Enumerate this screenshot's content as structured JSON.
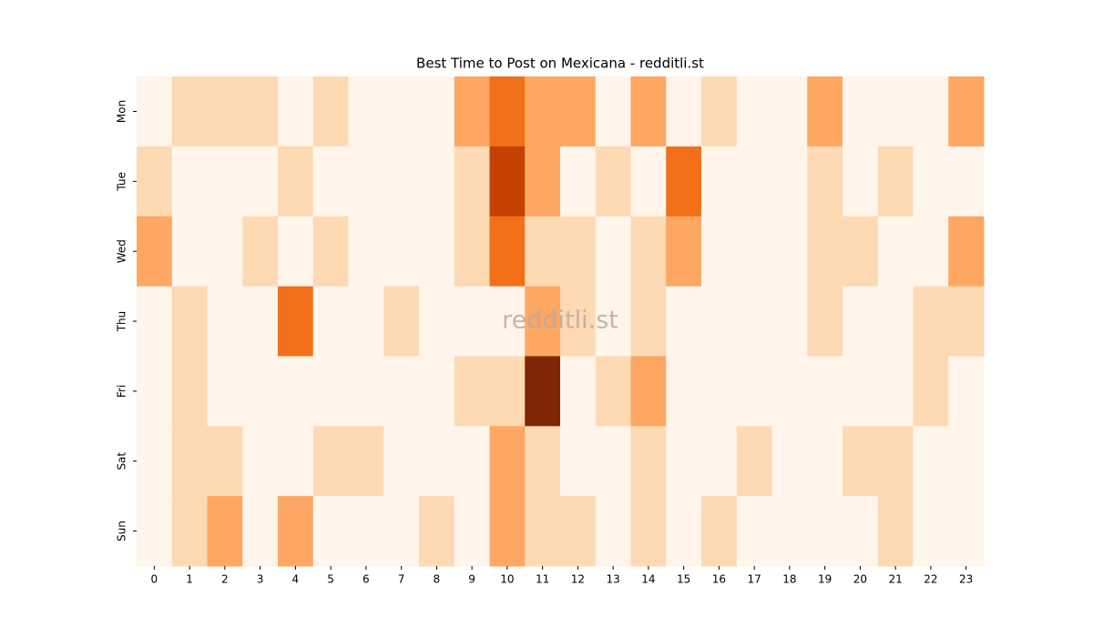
{
  "chart_data": {
    "type": "heatmap",
    "title": "Best Time to Post on Mexicana - redditli.st",
    "watermark": "redditli.st",
    "x": [
      0,
      1,
      2,
      3,
      4,
      5,
      6,
      7,
      8,
      9,
      10,
      11,
      12,
      13,
      14,
      15,
      16,
      17,
      18,
      19,
      20,
      21,
      22,
      23
    ],
    "y": [
      "Mon",
      "Tue",
      "Wed",
      "Thu",
      "Fri",
      "Sat",
      "Sun"
    ],
    "values": [
      [
        0,
        1,
        1,
        1,
        0,
        1,
        0,
        0,
        0,
        2,
        3,
        2,
        2,
        0,
        2,
        0,
        1,
        0,
        0,
        2,
        0,
        0,
        0,
        2
      ],
      [
        1,
        0,
        0,
        0,
        1,
        0,
        0,
        0,
        0,
        1,
        4,
        2,
        0,
        1,
        0,
        3,
        0,
        0,
        0,
        1,
        0,
        1,
        0,
        0
      ],
      [
        2,
        0,
        0,
        1,
        0,
        1,
        0,
        0,
        0,
        1,
        3,
        1,
        1,
        0,
        1,
        2,
        0,
        0,
        0,
        1,
        1,
        0,
        0,
        2
      ],
      [
        0,
        1,
        0,
        0,
        3,
        0,
        0,
        1,
        0,
        0,
        0,
        2,
        1,
        0,
        1,
        0,
        0,
        0,
        0,
        1,
        0,
        0,
        1,
        1
      ],
      [
        0,
        1,
        0,
        0,
        0,
        0,
        0,
        0,
        0,
        1,
        1,
        5,
        0,
        1,
        2,
        0,
        0,
        0,
        0,
        0,
        0,
        0,
        1,
        0
      ],
      [
        0,
        1,
        1,
        0,
        0,
        1,
        1,
        0,
        0,
        0,
        2,
        1,
        0,
        0,
        1,
        0,
        0,
        1,
        0,
        0,
        1,
        1,
        0,
        0
      ],
      [
        0,
        1,
        2,
        0,
        2,
        0,
        0,
        0,
        1,
        0,
        2,
        1,
        1,
        0,
        1,
        0,
        1,
        0,
        0,
        0,
        0,
        1,
        0,
        0
      ]
    ],
    "colors": [
      "#fff5eb",
      "#fdd9b4",
      "#fda762",
      "#f3701b",
      "#c54102",
      "#7f2704"
    ]
  }
}
